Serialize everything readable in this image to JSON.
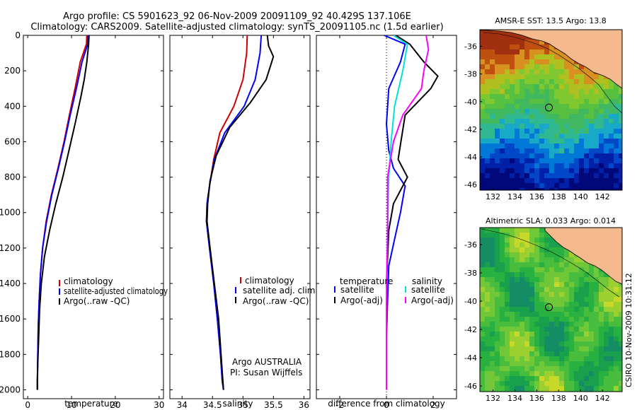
{
  "title_line1": "Argo profile: CS 5901623_92 06-Nov-2009 20091109_92 40.429S 137.106E",
  "title_line2": "Climatology: CARS2009. Satellite-adjusted climatology: synTS_20091105.nc (1.5d earlier)",
  "side_stamp": "CSIRO 10-Nov-2009 10:31:12",
  "colors": {
    "climatology": "#d00000",
    "satellite": "#0000ff",
    "argo": "#000000",
    "satellite_diff": "#00e0e0",
    "argo_adj_diff": "#ff00ff",
    "land": "#f4b98c"
  },
  "chart_data": [
    {
      "type": "line",
      "xlabel": "temperature",
      "ylabel": "",
      "xlim": [
        -1,
        31
      ],
      "ylim": [
        2050,
        0
      ],
      "y_reversed": true,
      "xticks": [
        0,
        10,
        20,
        30
      ],
      "yticks": [
        0,
        200,
        400,
        600,
        800,
        1000,
        1200,
        1400,
        1600,
        1800,
        2000
      ],
      "legend": [
        "climatology",
        "satellite-adjusted climatology",
        "Argo(..raw -QC)"
      ],
      "legend_position": "lower-right",
      "series": [
        {
          "name": "climatology",
          "color": "#d00000",
          "x": [
            13.5,
            13.4,
            12.0,
            10.8,
            9.5,
            8.3,
            6.9,
            5.4,
            4.2,
            3.4,
            2.9,
            2.6,
            2.4,
            2.3,
            2.2,
            2.2
          ],
          "y": [
            0,
            50,
            150,
            300,
            450,
            600,
            750,
            900,
            1050,
            1200,
            1350,
            1500,
            1650,
            1800,
            1950,
            2000
          ]
        },
        {
          "name": "satellite-adjusted climatology",
          "color": "#0000ff",
          "x": [
            13.8,
            13.7,
            12.4,
            11.1,
            9.7,
            8.4,
            7.0,
            5.5,
            4.3,
            3.4,
            2.9,
            2.6,
            2.4,
            2.3,
            2.2,
            2.2
          ],
          "y": [
            0,
            50,
            150,
            300,
            450,
            600,
            750,
            900,
            1050,
            1200,
            1350,
            1500,
            1650,
            1800,
            1950,
            2000
          ]
        },
        {
          "name": "Argo(..raw -QC)",
          "color": "#000000",
          "x": [
            14.0,
            13.9,
            13.5,
            12.9,
            12.1,
            10.8,
            9.4,
            8.0,
            6.4,
            5.0,
            3.8,
            3.1,
            2.7,
            2.5,
            2.3,
            2.2,
            2.2
          ],
          "y": [
            0,
            50,
            150,
            250,
            350,
            500,
            650,
            800,
            950,
            1100,
            1250,
            1400,
            1550,
            1700,
            1850,
            1950,
            2000
          ]
        }
      ]
    },
    {
      "type": "line",
      "xlabel": "salinity",
      "ylabel": "",
      "xlim": [
        33.8,
        36.1
      ],
      "ylim": [
        2050,
        0
      ],
      "y_reversed": true,
      "xticks": [
        34,
        34.5,
        35,
        35.5,
        36
      ],
      "legend": [
        "climatology",
        "satellite adj. clim.",
        "Argo(..raw -QC)"
      ],
      "legend_position": "lower-right",
      "annotation": [
        "Argo AUSTRALIA",
        "PI: Susan Wijffels"
      ],
      "series": [
        {
          "name": "climatology",
          "color": "#d00000",
          "x": [
            35.07,
            35.06,
            35.0,
            34.85,
            34.62,
            34.52,
            34.45,
            34.41,
            34.4,
            34.45,
            34.52,
            34.58,
            34.63,
            34.66,
            34.68
          ],
          "y": [
            0,
            100,
            250,
            400,
            550,
            700,
            850,
            950,
            1050,
            1200,
            1400,
            1600,
            1800,
            1950,
            2000
          ]
        },
        {
          "name": "satellite adj. clim.",
          "color": "#0000ff",
          "x": [
            35.3,
            35.28,
            35.2,
            35.02,
            34.7,
            34.53,
            34.45,
            34.41,
            34.4,
            34.45,
            34.52,
            34.58,
            34.63,
            34.66,
            34.68
          ],
          "y": [
            0,
            100,
            250,
            400,
            550,
            700,
            850,
            950,
            1050,
            1200,
            1400,
            1600,
            1800,
            1950,
            2000
          ]
        },
        {
          "name": "Argo(..raw -QC)",
          "color": "#000000",
          "x": [
            35.4,
            35.42,
            35.5,
            35.38,
            35.12,
            34.78,
            34.56,
            34.46,
            34.42,
            34.41,
            34.46,
            34.53,
            34.6,
            34.64,
            34.67,
            34.68
          ],
          "y": [
            0,
            60,
            120,
            250,
            380,
            520,
            680,
            820,
            950,
            1050,
            1200,
            1400,
            1600,
            1800,
            1950,
            2000
          ]
        }
      ]
    },
    {
      "type": "line",
      "xlabel": "difference from climatology",
      "ylabel": "",
      "xlim": [
        -3,
        3
      ],
      "ylim": [
        2050,
        0
      ],
      "y_reversed": true,
      "xticks": [
        -2,
        0,
        2
      ],
      "legend_temperature": {
        "heading": "temperature",
        "items": [
          "satellite",
          "Argo(-adj)"
        ]
      },
      "legend_salinity": {
        "heading": "salinity",
        "items": [
          "satellite",
          "Argo(-adj)"
        ]
      },
      "series": [
        {
          "name": "temperature satellite",
          "color": "#0000ff",
          "x": [
            -0.1,
            0.8,
            0.6,
            0.1,
            0.0,
            0.1,
            0.3,
            0.8,
            0.6,
            0.35,
            0.1,
            0.05,
            0.0,
            0.0,
            0.0
          ],
          "y": [
            0,
            50,
            150,
            300,
            500,
            650,
            750,
            850,
            1000,
            1150,
            1300,
            1500,
            1700,
            1900,
            2000
          ]
        },
        {
          "name": "temperature Argo(-adj)",
          "color": "#000000",
          "x": [
            0.4,
            1.0,
            1.6,
            2.2,
            1.9,
            0.8,
            0.5,
            0.9,
            0.3,
            0.1,
            0.0,
            0.0,
            0.0
          ],
          "y": [
            0,
            50,
            150,
            230,
            300,
            450,
            700,
            800,
            950,
            1100,
            1400,
            1700,
            2000
          ]
        },
        {
          "name": "salinity satellite",
          "color": "#00e0e0",
          "x": [
            0.3,
            0.9,
            0.7,
            0.35,
            0.2,
            0.1,
            0.05,
            0.0,
            0.0,
            0.0
          ],
          "y": [
            0,
            50,
            200,
            400,
            600,
            800,
            1100,
            1400,
            1700,
            2000
          ]
        },
        {
          "name": "salinity Argo(-adj)",
          "color": "#ff00ff",
          "x": [
            1.7,
            1.8,
            1.6,
            1.5,
            0.7,
            0.3,
            0.05,
            0.05,
            0.0,
            0.0
          ],
          "y": [
            0,
            80,
            200,
            300,
            450,
            600,
            800,
            1100,
            1500,
            2000
          ]
        }
      ]
    },
    {
      "type": "heatmap",
      "title": "AMSR-E SST: 13.5 Argo: 13.8",
      "xlim": [
        130.8,
        143.8
      ],
      "ylim": [
        -46.4,
        -34.8
      ],
      "xticks": [
        132,
        134,
        136,
        138,
        140,
        142
      ],
      "yticks": [
        -36,
        -38,
        -40,
        -42,
        -44,
        -46
      ],
      "marker": {
        "lon": 137.106,
        "lat": -40.429
      }
    },
    {
      "type": "heatmap",
      "title": "Altimetric SLA: 0.033 Argo: 0.014",
      "xlim": [
        130.8,
        143.8
      ],
      "ylim": [
        -46.4,
        -34.8
      ],
      "xticks": [
        132,
        134,
        136,
        138,
        140,
        142
      ],
      "yticks": [
        -36,
        -38,
        -40,
        -42,
        -44,
        -46
      ],
      "marker": {
        "lon": 137.106,
        "lat": -40.429
      }
    }
  ]
}
